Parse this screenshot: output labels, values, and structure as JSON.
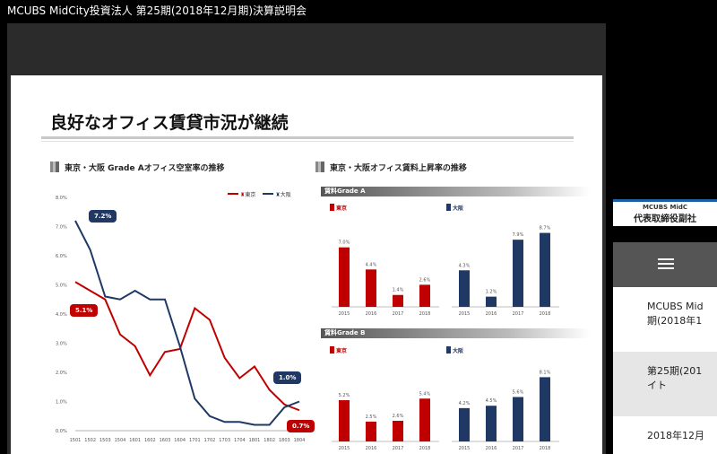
{
  "window": {
    "title": "MCUBS MidCity投資法人 第25期(2018年12月期)決算説明会"
  },
  "slide": {
    "title": "良好なオフィス賃貸市況が継続",
    "left_section_title": "東京・大阪 Grade Aオフィス空室率の推移",
    "right_section_title": "東京・大阪オフィス賃料上昇率の推移",
    "legend": {
      "tokyo": "東京",
      "osaka": "大阪"
    },
    "callouts": {
      "osaka_start": "7.2%",
      "tokyo_start": "5.1%",
      "osaka_end": "1.0%",
      "tokyo_end": "0.7%"
    },
    "grade_a_label": "賃料Grade A",
    "grade_b_label": "賃料Grade B",
    "city_tokyo": "東京",
    "city_osaka": "大阪"
  },
  "colors": {
    "tokyo": "#c00000",
    "osaka": "#1f3864"
  },
  "chart_data": [
    {
      "type": "line",
      "title": "東京・大阪 Grade Aオフィス空室率の推移",
      "x": [
        "1501",
        "1502",
        "1503",
        "1504",
        "1601",
        "1602",
        "1603",
        "1604",
        "1701",
        "1702",
        "1703",
        "1704",
        "1801",
        "1802",
        "1803",
        "1804"
      ],
      "ylim": [
        0,
        8
      ],
      "yticks": [
        "0.0%",
        "1.0%",
        "2.0%",
        "3.0%",
        "4.0%",
        "5.0%",
        "6.0%",
        "7.0%",
        "8.0%"
      ],
      "series": [
        {
          "name": "東京",
          "values": [
            5.1,
            4.8,
            4.5,
            3.3,
            2.9,
            1.9,
            2.7,
            2.8,
            4.2,
            3.8,
            2.5,
            1.8,
            2.2,
            1.4,
            0.9,
            0.7
          ]
        },
        {
          "name": "大阪",
          "values": [
            7.2,
            6.2,
            4.6,
            4.5,
            4.8,
            4.5,
            4.5,
            2.9,
            1.1,
            0.5,
            0.3,
            0.3,
            0.2,
            0.2,
            0.8,
            1.0
          ]
        }
      ],
      "legend": "top-right",
      "grid": false
    },
    {
      "type": "bar",
      "title": "賃料Grade A 東京",
      "categories": [
        "2015",
        "2016",
        "2017",
        "2018"
      ],
      "values": [
        7.0,
        4.4,
        1.4,
        2.6
      ],
      "labels": [
        "7.0%",
        "4.4%",
        "1.4%",
        "2.6%"
      ],
      "ylim": [
        0,
        9.5
      ]
    },
    {
      "type": "bar",
      "title": "賃料Grade A 大阪",
      "categories": [
        "2015",
        "2016",
        "2017",
        "2018"
      ],
      "values": [
        4.3,
        1.2,
        7.9,
        8.7
      ],
      "labels": [
        "4.3%",
        "1.2%",
        "7.9%",
        "8.7%"
      ],
      "ylim": [
        0,
        9.5
      ]
    },
    {
      "type": "bar",
      "title": "賃料Grade B 東京",
      "categories": [
        "2015",
        "2016",
        "2017",
        "2018"
      ],
      "values": [
        5.2,
        2.5,
        2.6,
        5.4
      ],
      "labels": [
        "5.2%",
        "2.5%",
        "2.6%",
        "5.4%"
      ],
      "ylim": [
        0,
        9.5
      ]
    },
    {
      "type": "bar",
      "title": "賃料Grade B 大阪",
      "categories": [
        "2015",
        "2016",
        "2017",
        "2018"
      ],
      "values": [
        4.2,
        4.5,
        5.6,
        8.1
      ],
      "labels": [
        "4.2%",
        "4.5%",
        "5.6%",
        "8.1%"
      ],
      "ylim": [
        0,
        9.5
      ]
    }
  ],
  "side_panel": {
    "header_line1": "MCUBS MidC",
    "header_line2": "代表取締役副社",
    "items": [
      {
        "line1": "MCUBS Mid",
        "line2": "期(2018年1"
      },
      {
        "line1": "第25期(201",
        "line2": "イト"
      },
      {
        "line1": "2018年12月",
        "line2": ""
      }
    ]
  }
}
